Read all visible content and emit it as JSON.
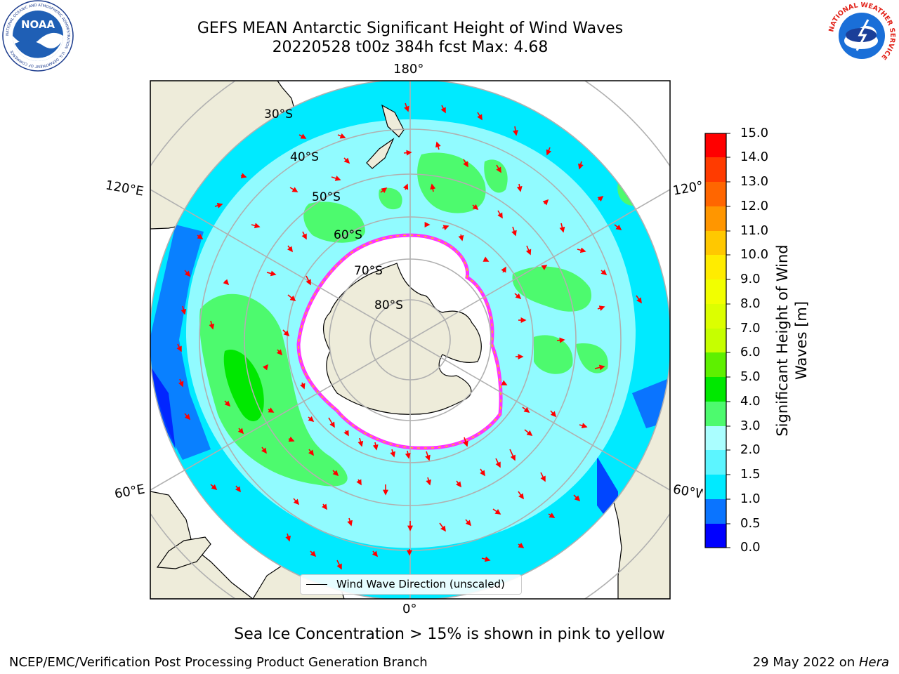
{
  "header": {
    "title_line1": "GEFS MEAN Antarctic Significant Height of Wind Waves",
    "title_line2": "20220528 t00z 384h fcst   Max: 4.68"
  },
  "logos": {
    "noaa_text": "NOAA",
    "noaa_ring_text": "NATIONAL OCEANIC AND ATMOSPHERIC ADMINISTRATION · U.S. DEPARTMENT OF COMMERCE",
    "nws_ring_text": "NATIONAL WEATHER SERVICE"
  },
  "map": {
    "longitude_labels": {
      "top": "180°",
      "bottom": "0°",
      "upper_left": "120°E",
      "upper_right": "120°W",
      "lower_left": "60°E",
      "lower_right": "60°W"
    },
    "latitude_labels": [
      "30°S",
      "40°S",
      "50°S",
      "60°S",
      "70°S",
      "80°S"
    ],
    "legend_label": "Wind Wave Direction (unscaled)",
    "colors": {
      "land": "#eeecda",
      "ice": "#ffffff",
      "ice_edge": "#ff33ff"
    }
  },
  "colorbar": {
    "title_line1": "Significant Height of Wind",
    "title_line2": "Waves [m]",
    "ticks": [
      "0.0",
      "0.5",
      "1.0",
      "1.5",
      "2.0",
      "3.0",
      "4.0",
      "5.0",
      "6.0",
      "7.0",
      "8.0",
      "9.0",
      "10.0",
      "11.0",
      "12.0",
      "13.0",
      "14.0",
      "15.0"
    ],
    "colors": [
      "#0000ff",
      "#0a74ff",
      "#00eaff",
      "#5cf5ff",
      "#aafeff",
      "#4dfa6e",
      "#00e800",
      "#5ef000",
      "#c6ff00",
      "#dcff00",
      "#f2ff00",
      "#ffec00",
      "#ffc800",
      "#ff9600",
      "#ff6600",
      "#ff3b00",
      "#ff0000"
    ]
  },
  "footer": {
    "sea_ice_note": "Sea Ice Concentration > 15% is shown in pink to yellow",
    "credit": "NCEP/EMC/Verification Post Processing Product Generation Branch",
    "date_prefix": "29 May 2022 on ",
    "date_machine": "Hera"
  }
}
